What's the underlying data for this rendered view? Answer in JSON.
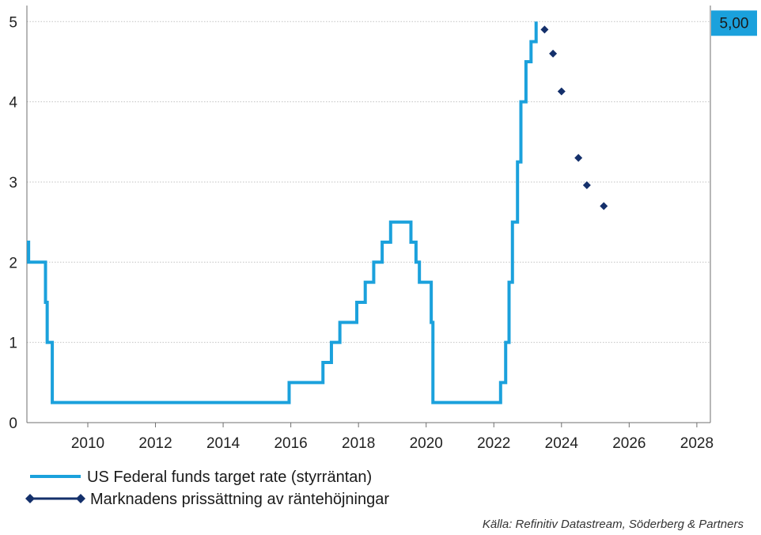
{
  "chart_data": {
    "type": "line",
    "title": "",
    "xlabel": "",
    "ylabel": "",
    "xlim": [
      2008.2,
      2028.4
    ],
    "ylim": [
      0,
      5.2
    ],
    "x_ticks": [
      2010,
      2012,
      2014,
      2016,
      2018,
      2020,
      2022,
      2024,
      2026,
      2028
    ],
    "x_tick_labels": [
      "2010",
      "2012",
      "2014",
      "2016",
      "2018",
      "2020",
      "2022",
      "2024",
      "2026",
      "2028"
    ],
    "y_ticks": [
      0,
      1,
      2,
      3,
      4,
      5
    ],
    "y_tick_labels": [
      "0",
      "1",
      "2",
      "3",
      "4",
      "5"
    ],
    "grid": "horizontal dotted",
    "legend_position": "bottom-left",
    "series": [
      {
        "name": "US Federal funds target rate (styrräntan)",
        "type": "step-line",
        "color": "#1ba1dc",
        "points": [
          [
            2008.2,
            2.25
          ],
          [
            2008.25,
            2.25
          ],
          [
            2008.25,
            2.0
          ],
          [
            2008.75,
            2.0
          ],
          [
            2008.75,
            1.5
          ],
          [
            2008.8,
            1.5
          ],
          [
            2008.8,
            1.0
          ],
          [
            2008.95,
            1.0
          ],
          [
            2008.95,
            0.25
          ],
          [
            2015.95,
            0.25
          ],
          [
            2015.95,
            0.5
          ],
          [
            2016.95,
            0.5
          ],
          [
            2016.95,
            0.75
          ],
          [
            2017.2,
            0.75
          ],
          [
            2017.2,
            1.0
          ],
          [
            2017.45,
            1.0
          ],
          [
            2017.45,
            1.25
          ],
          [
            2017.95,
            1.25
          ],
          [
            2017.95,
            1.5
          ],
          [
            2018.2,
            1.5
          ],
          [
            2018.2,
            1.75
          ],
          [
            2018.45,
            1.75
          ],
          [
            2018.45,
            2.0
          ],
          [
            2018.7,
            2.0
          ],
          [
            2018.7,
            2.25
          ],
          [
            2018.95,
            2.25
          ],
          [
            2018.95,
            2.5
          ],
          [
            2019.55,
            2.5
          ],
          [
            2019.55,
            2.25
          ],
          [
            2019.7,
            2.25
          ],
          [
            2019.7,
            2.0
          ],
          [
            2019.8,
            2.0
          ],
          [
            2019.8,
            1.75
          ],
          [
            2020.15,
            1.75
          ],
          [
            2020.15,
            1.25
          ],
          [
            2020.2,
            1.25
          ],
          [
            2020.2,
            0.25
          ],
          [
            2022.2,
            0.25
          ],
          [
            2022.2,
            0.5
          ],
          [
            2022.35,
            0.5
          ],
          [
            2022.35,
            1.0
          ],
          [
            2022.45,
            1.0
          ],
          [
            2022.45,
            1.75
          ],
          [
            2022.55,
            1.75
          ],
          [
            2022.55,
            2.5
          ],
          [
            2022.7,
            2.5
          ],
          [
            2022.7,
            3.25
          ],
          [
            2022.8,
            3.25
          ],
          [
            2022.8,
            4.0
          ],
          [
            2022.95,
            4.0
          ],
          [
            2022.95,
            4.5
          ],
          [
            2023.1,
            4.5
          ],
          [
            2023.1,
            4.75
          ],
          [
            2023.25,
            4.75
          ],
          [
            2023.25,
            5.0
          ]
        ]
      },
      {
        "name": "Marknadens prissättning av räntehöjningar",
        "type": "scatter",
        "color": "#14306b",
        "points": [
          [
            2023.5,
            4.9
          ],
          [
            2023.75,
            4.6
          ],
          [
            2024.0,
            4.13
          ],
          [
            2024.5,
            3.3
          ],
          [
            2024.75,
            2.96
          ],
          [
            2025.25,
            2.7
          ]
        ]
      }
    ],
    "annotations": [
      {
        "text": "5,00",
        "y": 5.0,
        "background": "#1ba1dc"
      }
    ],
    "source": "Källa: Refinitiv Datastream, Söderberg & Partners"
  },
  "colors": {
    "axis": "#6f6f6f",
    "grid": "#c2c2c2",
    "rate_line": "#1ba1dc",
    "forecast_markers": "#14306b",
    "badge": "#1ba1dc"
  }
}
